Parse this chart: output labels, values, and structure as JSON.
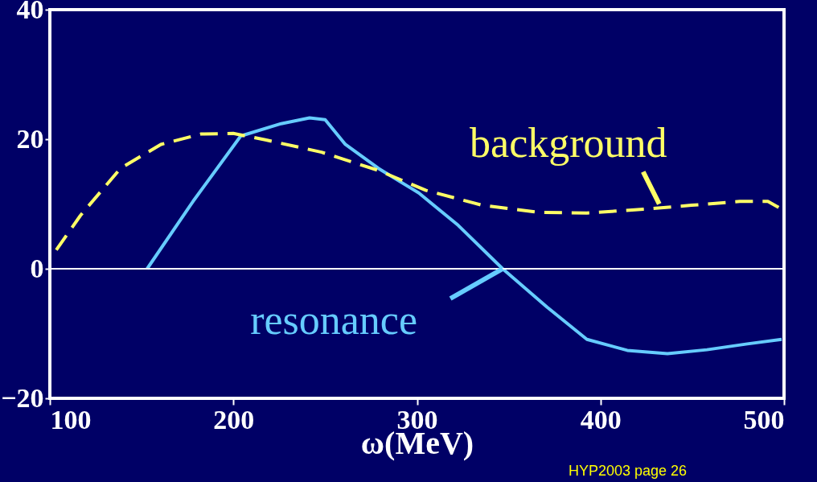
{
  "chart_data": {
    "type": "line",
    "xlabel": "ω(MeV)",
    "xlim": [
      100,
      500
    ],
    "xticks": [
      100,
      200,
      300,
      400,
      500
    ],
    "ylim": [
      -20,
      40
    ],
    "yticks": [
      -20,
      0,
      20,
      40
    ],
    "series": [
      {
        "color": "#66ccff",
        "line_style": "solid",
        "x": [
          153,
          178,
          204,
          226,
          241.5,
          250,
          261,
          279,
          301,
          322.5,
          346.7,
          370.8,
          392.6,
          414.6,
          436.5,
          458,
          480,
          498.7
        ],
        "values": [
          0,
          10.4,
          20.5,
          22.4,
          23.3,
          23,
          19.2,
          15.5,
          11.7,
          6.7,
          0,
          -5.9,
          -10.9,
          -12.6,
          -13.1,
          -12.5,
          -11.6,
          -10.9
        ]
      },
      {
        "color": "#ffff66",
        "line_style": "dashed",
        "x": [
          103.5,
          116.6,
          138.5,
          160.5,
          182.4,
          199.9,
          217.4,
          248,
          278.8,
          305,
          335.7,
          366.4,
          392.6,
          423.3,
          449.6,
          475.9,
          491.2,
          498.7
        ],
        "values": [
          2.9,
          8.2,
          15.5,
          19.2,
          20.8,
          20.9,
          19.9,
          18,
          15.2,
          12.1,
          9.8,
          8.7,
          8.6,
          9.2,
          9.8,
          10.4,
          10.4,
          9.2
        ]
      }
    ],
    "ref_lines": [
      {
        "axis": "y",
        "value": 0,
        "color": "#ffffff"
      }
    ],
    "annotations": [
      {
        "text": "resonance",
        "x": 346.7,
        "y": 0
      },
      {
        "text": "background",
        "x": 432,
        "y": 10
      },
      "HYP2003   page 26"
    ]
  }
}
